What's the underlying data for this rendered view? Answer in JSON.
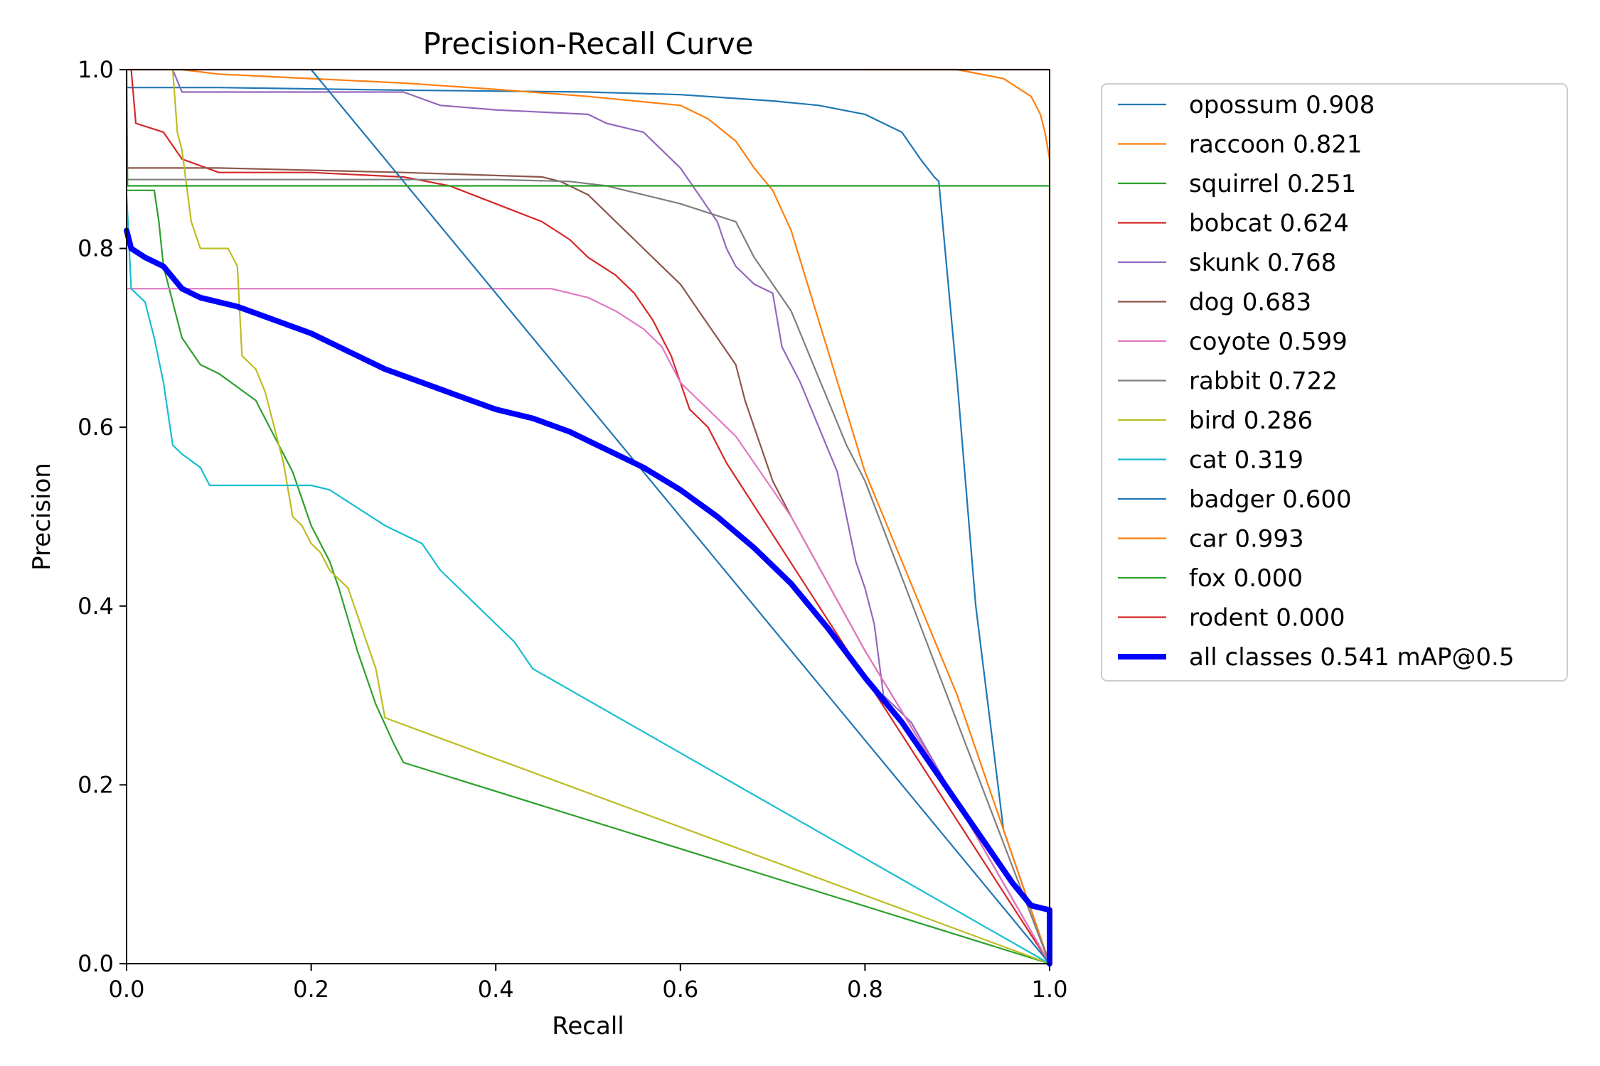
{
  "chart_data": {
    "type": "line",
    "title": "Precision-Recall Curve",
    "xlabel": "Recall",
    "ylabel": "Precision",
    "xlim": [
      0,
      1
    ],
    "ylim": [
      0,
      1
    ],
    "xticks": [
      "0.0",
      "0.2",
      "0.4",
      "0.6",
      "0.8",
      "1.0"
    ],
    "yticks": [
      "0.0",
      "0.2",
      "0.4",
      "0.6",
      "0.8",
      "1.0"
    ],
    "legend_position": "outside-right",
    "series": [
      {
        "name": "opossum",
        "label": "opossum 0.908",
        "color": "#1f77b4",
        "points": [
          [
            0.0,
            0.98
          ],
          [
            0.1,
            0.98
          ],
          [
            0.3,
            0.977
          ],
          [
            0.5,
            0.975
          ],
          [
            0.6,
            0.972
          ],
          [
            0.7,
            0.965
          ],
          [
            0.75,
            0.96
          ],
          [
            0.8,
            0.95
          ],
          [
            0.84,
            0.93
          ],
          [
            0.86,
            0.9
          ],
          [
            0.875,
            0.88
          ],
          [
            0.88,
            0.875
          ],
          [
            0.9,
            0.65
          ],
          [
            0.92,
            0.4
          ],
          [
            0.95,
            0.15
          ],
          [
            1.0,
            0.0
          ]
        ]
      },
      {
        "name": "raccoon",
        "label": "raccoon 0.821",
        "color": "#ff7f0e",
        "points": [
          [
            0.06,
            1.0
          ],
          [
            0.1,
            0.995
          ],
          [
            0.2,
            0.99
          ],
          [
            0.3,
            0.985
          ],
          [
            0.4,
            0.978
          ],
          [
            0.5,
            0.97
          ],
          [
            0.55,
            0.965
          ],
          [
            0.6,
            0.96
          ],
          [
            0.63,
            0.945
          ],
          [
            0.66,
            0.92
          ],
          [
            0.68,
            0.89
          ],
          [
            0.7,
            0.865
          ],
          [
            0.72,
            0.82
          ],
          [
            0.8,
            0.55
          ],
          [
            0.9,
            0.3
          ],
          [
            1.0,
            0.0
          ]
        ]
      },
      {
        "name": "squirrel",
        "label": "squirrel 0.251",
        "color": "#2ca02c",
        "points": [
          [
            0.0,
            0.865
          ],
          [
            0.03,
            0.865
          ],
          [
            0.035,
            0.83
          ],
          [
            0.04,
            0.78
          ],
          [
            0.05,
            0.74
          ],
          [
            0.06,
            0.7
          ],
          [
            0.08,
            0.67
          ],
          [
            0.1,
            0.66
          ],
          [
            0.12,
            0.645
          ],
          [
            0.14,
            0.63
          ],
          [
            0.16,
            0.59
          ],
          [
            0.18,
            0.55
          ],
          [
            0.2,
            0.49
          ],
          [
            0.22,
            0.45
          ],
          [
            0.23,
            0.42
          ],
          [
            0.25,
            0.35
          ],
          [
            0.27,
            0.29
          ],
          [
            0.29,
            0.245
          ],
          [
            0.3,
            0.225
          ],
          [
            1.0,
            0.0
          ]
        ]
      },
      {
        "name": "bobcat",
        "label": "bobcat 0.624",
        "color": "#d62728",
        "points": [
          [
            0.005,
            1.0
          ],
          [
            0.01,
            0.94
          ],
          [
            0.04,
            0.93
          ],
          [
            0.06,
            0.9
          ],
          [
            0.1,
            0.885
          ],
          [
            0.2,
            0.885
          ],
          [
            0.3,
            0.88
          ],
          [
            0.35,
            0.87
          ],
          [
            0.4,
            0.85
          ],
          [
            0.45,
            0.83
          ],
          [
            0.48,
            0.81
          ],
          [
            0.5,
            0.79
          ],
          [
            0.53,
            0.77
          ],
          [
            0.55,
            0.75
          ],
          [
            0.57,
            0.72
          ],
          [
            0.59,
            0.68
          ],
          [
            0.6,
            0.65
          ],
          [
            0.61,
            0.62
          ],
          [
            0.63,
            0.6
          ],
          [
            0.65,
            0.56
          ],
          [
            1.0,
            0.0
          ]
        ]
      },
      {
        "name": "skunk",
        "label": "skunk 0.768",
        "color": "#9467bd",
        "points": [
          [
            0.05,
            1.0
          ],
          [
            0.06,
            0.975
          ],
          [
            0.2,
            0.975
          ],
          [
            0.3,
            0.975
          ],
          [
            0.34,
            0.96
          ],
          [
            0.4,
            0.955
          ],
          [
            0.5,
            0.95
          ],
          [
            0.52,
            0.94
          ],
          [
            0.56,
            0.93
          ],
          [
            0.58,
            0.91
          ],
          [
            0.6,
            0.89
          ],
          [
            0.62,
            0.86
          ],
          [
            0.64,
            0.83
          ],
          [
            0.65,
            0.8
          ],
          [
            0.66,
            0.78
          ],
          [
            0.68,
            0.76
          ],
          [
            0.7,
            0.75
          ],
          [
            0.71,
            0.69
          ],
          [
            0.73,
            0.65
          ],
          [
            0.75,
            0.6
          ],
          [
            0.77,
            0.55
          ],
          [
            0.78,
            0.5
          ],
          [
            0.79,
            0.45
          ],
          [
            0.8,
            0.42
          ],
          [
            0.81,
            0.38
          ],
          [
            0.82,
            0.3
          ],
          [
            0.83,
            0.29
          ],
          [
            0.85,
            0.27
          ],
          [
            1.0,
            0.0
          ]
        ]
      },
      {
        "name": "dog",
        "label": "dog 0.683",
        "color": "#8c564b",
        "points": [
          [
            0.0,
            0.89
          ],
          [
            0.1,
            0.89
          ],
          [
            0.3,
            0.885
          ],
          [
            0.45,
            0.88
          ],
          [
            0.47,
            0.875
          ],
          [
            0.5,
            0.86
          ],
          [
            0.52,
            0.84
          ],
          [
            0.55,
            0.81
          ],
          [
            0.58,
            0.78
          ],
          [
            0.6,
            0.76
          ],
          [
            0.62,
            0.73
          ],
          [
            0.64,
            0.7
          ],
          [
            0.66,
            0.67
          ],
          [
            0.67,
            0.63
          ],
          [
            0.68,
            0.6
          ],
          [
            0.69,
            0.57
          ],
          [
            0.7,
            0.54
          ],
          [
            0.72,
            0.5
          ],
          [
            0.8,
            0.35
          ],
          [
            0.9,
            0.18
          ],
          [
            1.0,
            0.0
          ]
        ]
      },
      {
        "name": "coyote",
        "label": "coyote 0.599",
        "color": "#e377c2",
        "points": [
          [
            0.0,
            0.755
          ],
          [
            0.2,
            0.755
          ],
          [
            0.4,
            0.755
          ],
          [
            0.46,
            0.755
          ],
          [
            0.5,
            0.745
          ],
          [
            0.53,
            0.73
          ],
          [
            0.56,
            0.71
          ],
          [
            0.58,
            0.69
          ],
          [
            0.6,
            0.65
          ],
          [
            0.62,
            0.63
          ],
          [
            0.64,
            0.61
          ],
          [
            0.66,
            0.59
          ],
          [
            0.68,
            0.56
          ],
          [
            0.7,
            0.53
          ],
          [
            0.72,
            0.5
          ],
          [
            0.8,
            0.35
          ],
          [
            0.9,
            0.18
          ],
          [
            1.0,
            0.0
          ]
        ]
      },
      {
        "name": "rabbit",
        "label": "rabbit 0.722",
        "color": "#7f7f7f",
        "points": [
          [
            0.0,
            0.877
          ],
          [
            0.2,
            0.877
          ],
          [
            0.4,
            0.877
          ],
          [
            0.48,
            0.875
          ],
          [
            0.52,
            0.87
          ],
          [
            0.56,
            0.86
          ],
          [
            0.6,
            0.85
          ],
          [
            0.63,
            0.84
          ],
          [
            0.66,
            0.83
          ],
          [
            0.68,
            0.79
          ],
          [
            0.7,
            0.76
          ],
          [
            0.72,
            0.73
          ],
          [
            0.74,
            0.68
          ],
          [
            0.76,
            0.63
          ],
          [
            0.78,
            0.58
          ],
          [
            0.8,
            0.54
          ],
          [
            1.0,
            0.0
          ]
        ]
      },
      {
        "name": "bird",
        "label": "bird 0.286",
        "color": "#bcbd22",
        "points": [
          [
            0.05,
            1.0
          ],
          [
            0.055,
            0.93
          ],
          [
            0.06,
            0.91
          ],
          [
            0.065,
            0.87
          ],
          [
            0.07,
            0.83
          ],
          [
            0.08,
            0.8
          ],
          [
            0.11,
            0.8
          ],
          [
            0.12,
            0.78
          ],
          [
            0.125,
            0.68
          ],
          [
            0.14,
            0.665
          ],
          [
            0.15,
            0.64
          ],
          [
            0.16,
            0.6
          ],
          [
            0.17,
            0.56
          ],
          [
            0.18,
            0.5
          ],
          [
            0.19,
            0.49
          ],
          [
            0.2,
            0.47
          ],
          [
            0.21,
            0.46
          ],
          [
            0.22,
            0.44
          ],
          [
            0.24,
            0.42
          ],
          [
            0.25,
            0.39
          ],
          [
            0.26,
            0.36
          ],
          [
            0.27,
            0.33
          ],
          [
            0.28,
            0.275
          ],
          [
            1.0,
            0.0
          ]
        ]
      },
      {
        "name": "cat",
        "label": "cat 0.319",
        "color": "#17becf",
        "points": [
          [
            0.0,
            0.86
          ],
          [
            0.005,
            0.755
          ],
          [
            0.02,
            0.74
          ],
          [
            0.03,
            0.7
          ],
          [
            0.04,
            0.65
          ],
          [
            0.05,
            0.58
          ],
          [
            0.06,
            0.57
          ],
          [
            0.08,
            0.555
          ],
          [
            0.09,
            0.535
          ],
          [
            0.15,
            0.535
          ],
          [
            0.2,
            0.535
          ],
          [
            0.22,
            0.53
          ],
          [
            0.25,
            0.51
          ],
          [
            0.28,
            0.49
          ],
          [
            0.32,
            0.47
          ],
          [
            0.34,
            0.44
          ],
          [
            0.37,
            0.41
          ],
          [
            0.4,
            0.38
          ],
          [
            0.42,
            0.36
          ],
          [
            0.44,
            0.33
          ],
          [
            1.0,
            0.0
          ]
        ]
      },
      {
        "name": "badger",
        "label": "badger 0.600",
        "color": "#1f77b4",
        "points": [
          [
            0.2,
            1.0
          ],
          [
            1.0,
            0.0
          ]
        ]
      },
      {
        "name": "car",
        "label": "car 0.993",
        "color": "#ff7f0e",
        "points": [
          [
            0.8,
            1.0
          ],
          [
            0.9,
            1.0
          ],
          [
            0.95,
            0.99
          ],
          [
            0.98,
            0.97
          ],
          [
            0.99,
            0.95
          ],
          [
            0.995,
            0.93
          ],
          [
            1.0,
            0.9
          ],
          [
            1.0,
            0.0
          ]
        ]
      },
      {
        "name": "fox",
        "label": "fox 0.000",
        "color": "#2ca02c",
        "points": [
          [
            0.0,
            1.0
          ],
          [
            0.001,
            0.87
          ],
          [
            1.0,
            0.87
          ]
        ]
      },
      {
        "name": "rodent",
        "label": "rodent 0.000",
        "color": "#d62728",
        "points": [
          [
            0.0,
            1.0
          ],
          [
            0.001,
            1.0
          ],
          [
            1.0,
            1.0
          ]
        ]
      },
      {
        "name": "all classes",
        "label": "all classes 0.541 mAP@0.5",
        "color": "#0000ff",
        "bold": true,
        "points": [
          [
            0.0,
            0.82
          ],
          [
            0.005,
            0.8
          ],
          [
            0.02,
            0.79
          ],
          [
            0.04,
            0.78
          ],
          [
            0.06,
            0.755
          ],
          [
            0.08,
            0.745
          ],
          [
            0.12,
            0.735
          ],
          [
            0.16,
            0.72
          ],
          [
            0.2,
            0.705
          ],
          [
            0.24,
            0.685
          ],
          [
            0.28,
            0.665
          ],
          [
            0.32,
            0.65
          ],
          [
            0.36,
            0.635
          ],
          [
            0.4,
            0.62
          ],
          [
            0.44,
            0.61
          ],
          [
            0.48,
            0.595
          ],
          [
            0.52,
            0.575
          ],
          [
            0.56,
            0.555
          ],
          [
            0.6,
            0.53
          ],
          [
            0.64,
            0.5
          ],
          [
            0.68,
            0.465
          ],
          [
            0.72,
            0.425
          ],
          [
            0.76,
            0.375
          ],
          [
            0.8,
            0.32
          ],
          [
            0.84,
            0.27
          ],
          [
            0.88,
            0.21
          ],
          [
            0.92,
            0.15
          ],
          [
            0.96,
            0.09
          ],
          [
            0.98,
            0.065
          ],
          [
            1.0,
            0.06
          ],
          [
            1.0,
            0.0
          ]
        ]
      }
    ]
  }
}
